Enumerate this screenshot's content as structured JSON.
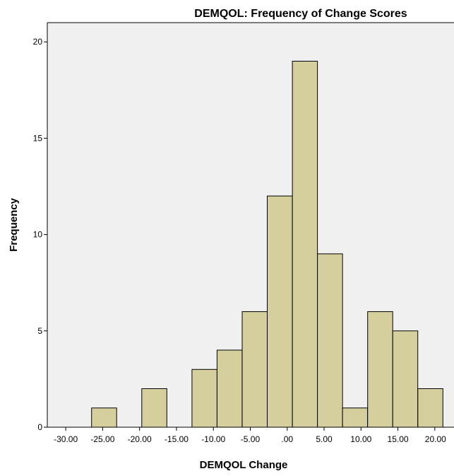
{
  "chart_data": {
    "type": "bar",
    "title": "DEMQOL: Frequency of Change Scores",
    "xlabel": "DEMQOL Change",
    "ylabel": "Frequency",
    "bin_width": 3.4,
    "bins": [
      {
        "start": -26.5,
        "end": -23.1,
        "count": 1
      },
      {
        "start": -23.1,
        "end": -19.7,
        "count": 0
      },
      {
        "start": -19.7,
        "end": -16.3,
        "count": 2
      },
      {
        "start": -16.3,
        "end": -12.9,
        "count": 0
      },
      {
        "start": -12.9,
        "end": -9.5,
        "count": 3
      },
      {
        "start": -9.5,
        "end": -6.1,
        "count": 4
      },
      {
        "start": -6.1,
        "end": -2.7,
        "count": 6
      },
      {
        "start": -2.7,
        "end": 0.7,
        "count": 12
      },
      {
        "start": 0.7,
        "end": 4.1,
        "count": 19
      },
      {
        "start": 4.1,
        "end": 7.5,
        "count": 9
      },
      {
        "start": 7.5,
        "end": 10.9,
        "count": 1
      },
      {
        "start": 10.9,
        "end": 14.3,
        "count": 6
      },
      {
        "start": 14.3,
        "end": 17.7,
        "count": 5
      },
      {
        "start": 17.7,
        "end": 21.1,
        "count": 2
      }
    ],
    "xlim": [
      -32.5,
      22.6
    ],
    "ylim": [
      0,
      21
    ],
    "x_ticks": [
      -30,
      -25,
      -20,
      -15,
      -10,
      -5,
      0,
      5,
      10,
      15,
      20
    ],
    "x_tick_labels": [
      "-30.00",
      "-25.00",
      "-20.00",
      "-15.00",
      "-10.00",
      "-5.00",
      ".00",
      "5.00",
      "10.00",
      "15.00",
      "20.00"
    ],
    "y_ticks": [
      0,
      5,
      10,
      15,
      20
    ],
    "y_tick_labels": [
      "0",
      "5",
      "10",
      "15",
      "20"
    ],
    "grid": false,
    "colors": {
      "bar_fill": "#d4cf9c",
      "bar_stroke": "#000000",
      "plot_background": "#f0f0f0",
      "frame": "#000000"
    }
  }
}
